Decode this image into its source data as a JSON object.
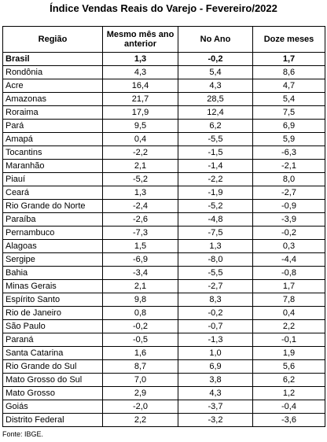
{
  "title": "Índice Vendas Reais do Varejo - Fevereiro/2022",
  "headers": [
    "Região",
    "Mesmo mês ano anterior",
    "No Ano",
    "Doze meses"
  ],
  "rows": [
    [
      "Brasil",
      "1,3",
      "-0,2",
      "1,7"
    ],
    [
      "Rondônia",
      "4,3",
      "5,4",
      "8,6"
    ],
    [
      "Acre",
      "16,4",
      "4,3",
      "4,7"
    ],
    [
      "Amazonas",
      "21,7",
      "28,5",
      "5,4"
    ],
    [
      "Roraima",
      "17,9",
      "12,4",
      "7,5"
    ],
    [
      "Pará",
      "9,5",
      "6,2",
      "6,9"
    ],
    [
      "Amapá",
      "0,4",
      "-5,5",
      "5,9"
    ],
    [
      "Tocantins",
      "-2,2",
      "-1,5",
      "-6,3"
    ],
    [
      "Maranhão",
      "2,1",
      "-1,4",
      "-2,1"
    ],
    [
      "Piauí",
      "-5,2",
      "-2,2",
      "8,0"
    ],
    [
      "Ceará",
      "1,3",
      "-1,9",
      "-2,7"
    ],
    [
      "Rio Grande do Norte",
      "-2,4",
      "-5,2",
      "-0,9"
    ],
    [
      "Paraíba",
      "-2,6",
      "-4,8",
      "-3,9"
    ],
    [
      "Pernambuco",
      "-7,3",
      "-7,5",
      "-0,2"
    ],
    [
      "Alagoas",
      "1,5",
      "1,3",
      "0,3"
    ],
    [
      "Sergipe",
      "-6,9",
      "-8,0",
      "-4,4"
    ],
    [
      "Bahia",
      "-3,4",
      "-5,5",
      "-0,8"
    ],
    [
      "Minas Gerais",
      "2,1",
      "-2,7",
      "1,7"
    ],
    [
      "Espírito Santo",
      "9,8",
      "8,3",
      "7,8"
    ],
    [
      "Rio de Janeiro",
      "0,8",
      "-0,2",
      "0,4"
    ],
    [
      "São Paulo",
      "-0,2",
      "-0,7",
      "2,2"
    ],
    [
      "Paraná",
      "-0,5",
      "-1,3",
      "-0,1"
    ],
    [
      "Santa Catarina",
      "1,6",
      "1,0",
      "1,9"
    ],
    [
      "Rio Grande do Sul",
      "8,7",
      "6,9",
      "5,6"
    ],
    [
      "Mato Grosso do Sul",
      "7,0",
      "3,8",
      "6,2"
    ],
    [
      "Mato Grosso",
      "2,9",
      "4,3",
      "1,2"
    ],
    [
      "Goiás",
      "-2,0",
      "-3,7",
      "-0,4"
    ],
    [
      "Distrito Federal",
      "2,2",
      "-3,2",
      "-3,6"
    ]
  ],
  "source": "Fonte: IBGE."
}
